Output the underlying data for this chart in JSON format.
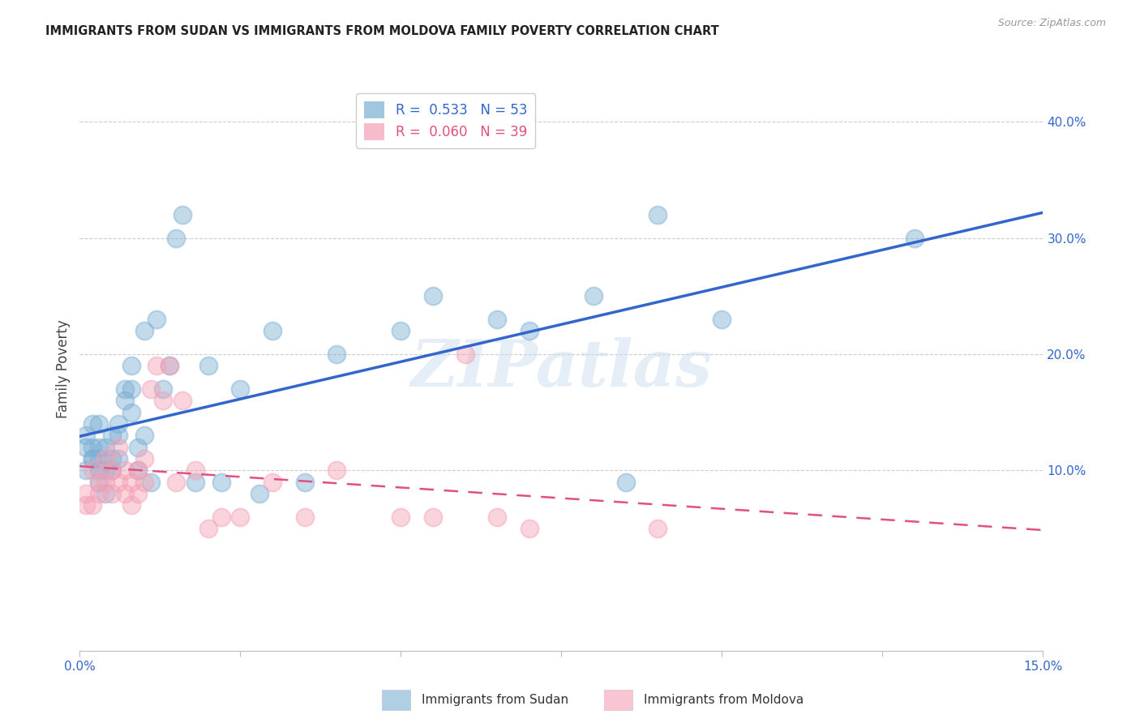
{
  "title": "IMMIGRANTS FROM SUDAN VS IMMIGRANTS FROM MOLDOVA FAMILY POVERTY CORRELATION CHART",
  "source": "Source: ZipAtlas.com",
  "ylabel": "Family Poverty",
  "xlim": [
    0.0,
    0.15
  ],
  "ylim": [
    -0.055,
    0.43
  ],
  "xtick_labeled": [
    0.0,
    0.15
  ],
  "xtick_labeled_labels": [
    "0.0%",
    "15.0%"
  ],
  "xtick_minor": [
    0.025,
    0.05,
    0.075,
    0.1,
    0.125
  ],
  "yticks_right": [
    0.1,
    0.2,
    0.3,
    0.4
  ],
  "ytick_right_labels": [
    "10.0%",
    "20.0%",
    "30.0%",
    "40.0%"
  ],
  "grid_color": "#cccccc",
  "background_color": "#ffffff",
  "sudan_color": "#7bafd4",
  "moldova_color": "#f4a0b5",
  "sudan_line_color": "#3366cc",
  "moldova_line_color": "#e05080",
  "sudan_R": 0.533,
  "sudan_N": 53,
  "moldova_R": 0.06,
  "moldova_N": 39,
  "sudan_label": "Immigrants from Sudan",
  "moldova_label": "Immigrants from Moldova",
  "watermark": "ZIPatlas",
  "sudan_x": [
    0.001,
    0.001,
    0.001,
    0.002,
    0.002,
    0.002,
    0.002,
    0.003,
    0.003,
    0.003,
    0.003,
    0.003,
    0.004,
    0.004,
    0.004,
    0.005,
    0.005,
    0.005,
    0.006,
    0.006,
    0.006,
    0.007,
    0.007,
    0.008,
    0.008,
    0.008,
    0.009,
    0.009,
    0.01,
    0.01,
    0.011,
    0.012,
    0.013,
    0.014,
    0.015,
    0.016,
    0.018,
    0.02,
    0.022,
    0.025,
    0.028,
    0.03,
    0.035,
    0.04,
    0.05,
    0.055,
    0.065,
    0.07,
    0.08,
    0.085,
    0.09,
    0.1,
    0.13
  ],
  "sudan_y": [
    0.13,
    0.12,
    0.1,
    0.14,
    0.11,
    0.12,
    0.11,
    0.14,
    0.12,
    0.11,
    0.1,
    0.09,
    0.12,
    0.1,
    0.08,
    0.11,
    0.13,
    0.1,
    0.14,
    0.13,
    0.11,
    0.17,
    0.16,
    0.19,
    0.17,
    0.15,
    0.12,
    0.1,
    0.13,
    0.22,
    0.09,
    0.23,
    0.17,
    0.19,
    0.3,
    0.32,
    0.09,
    0.19,
    0.09,
    0.17,
    0.08,
    0.22,
    0.09,
    0.2,
    0.22,
    0.25,
    0.23,
    0.22,
    0.25,
    0.09,
    0.32,
    0.23,
    0.3
  ],
  "moldova_x": [
    0.001,
    0.001,
    0.002,
    0.002,
    0.003,
    0.003,
    0.004,
    0.004,
    0.005,
    0.005,
    0.006,
    0.006,
    0.007,
    0.007,
    0.008,
    0.008,
    0.009,
    0.009,
    0.01,
    0.01,
    0.011,
    0.012,
    0.013,
    0.014,
    0.015,
    0.016,
    0.018,
    0.02,
    0.022,
    0.025,
    0.03,
    0.035,
    0.04,
    0.05,
    0.055,
    0.06,
    0.065,
    0.07,
    0.09
  ],
  "moldova_y": [
    0.08,
    0.07,
    0.1,
    0.07,
    0.09,
    0.08,
    0.11,
    0.09,
    0.1,
    0.08,
    0.12,
    0.09,
    0.1,
    0.08,
    0.09,
    0.07,
    0.1,
    0.08,
    0.11,
    0.09,
    0.17,
    0.19,
    0.16,
    0.19,
    0.09,
    0.16,
    0.1,
    0.05,
    0.06,
    0.06,
    0.09,
    0.06,
    0.1,
    0.06,
    0.06,
    0.2,
    0.06,
    0.05,
    0.05
  ]
}
